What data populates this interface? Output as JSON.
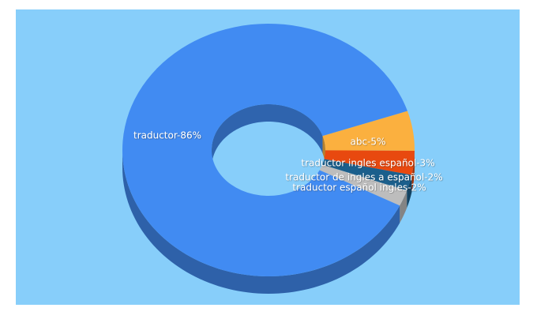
{
  "chart_data": {
    "type": "pie",
    "values": [
      5,
      3,
      2,
      2,
      86
    ],
    "value_labels": [
      "abc-5%",
      "traductor ingles español-3%",
      "traductor de ingles a español-2%",
      "traductor español ingles-2%",
      "traductor-86%"
    ],
    "colors": [
      "#fbb03f",
      "#e8490f",
      "#1b5f8c",
      "#bdbdbd",
      "#418bf2"
    ]
  }
}
